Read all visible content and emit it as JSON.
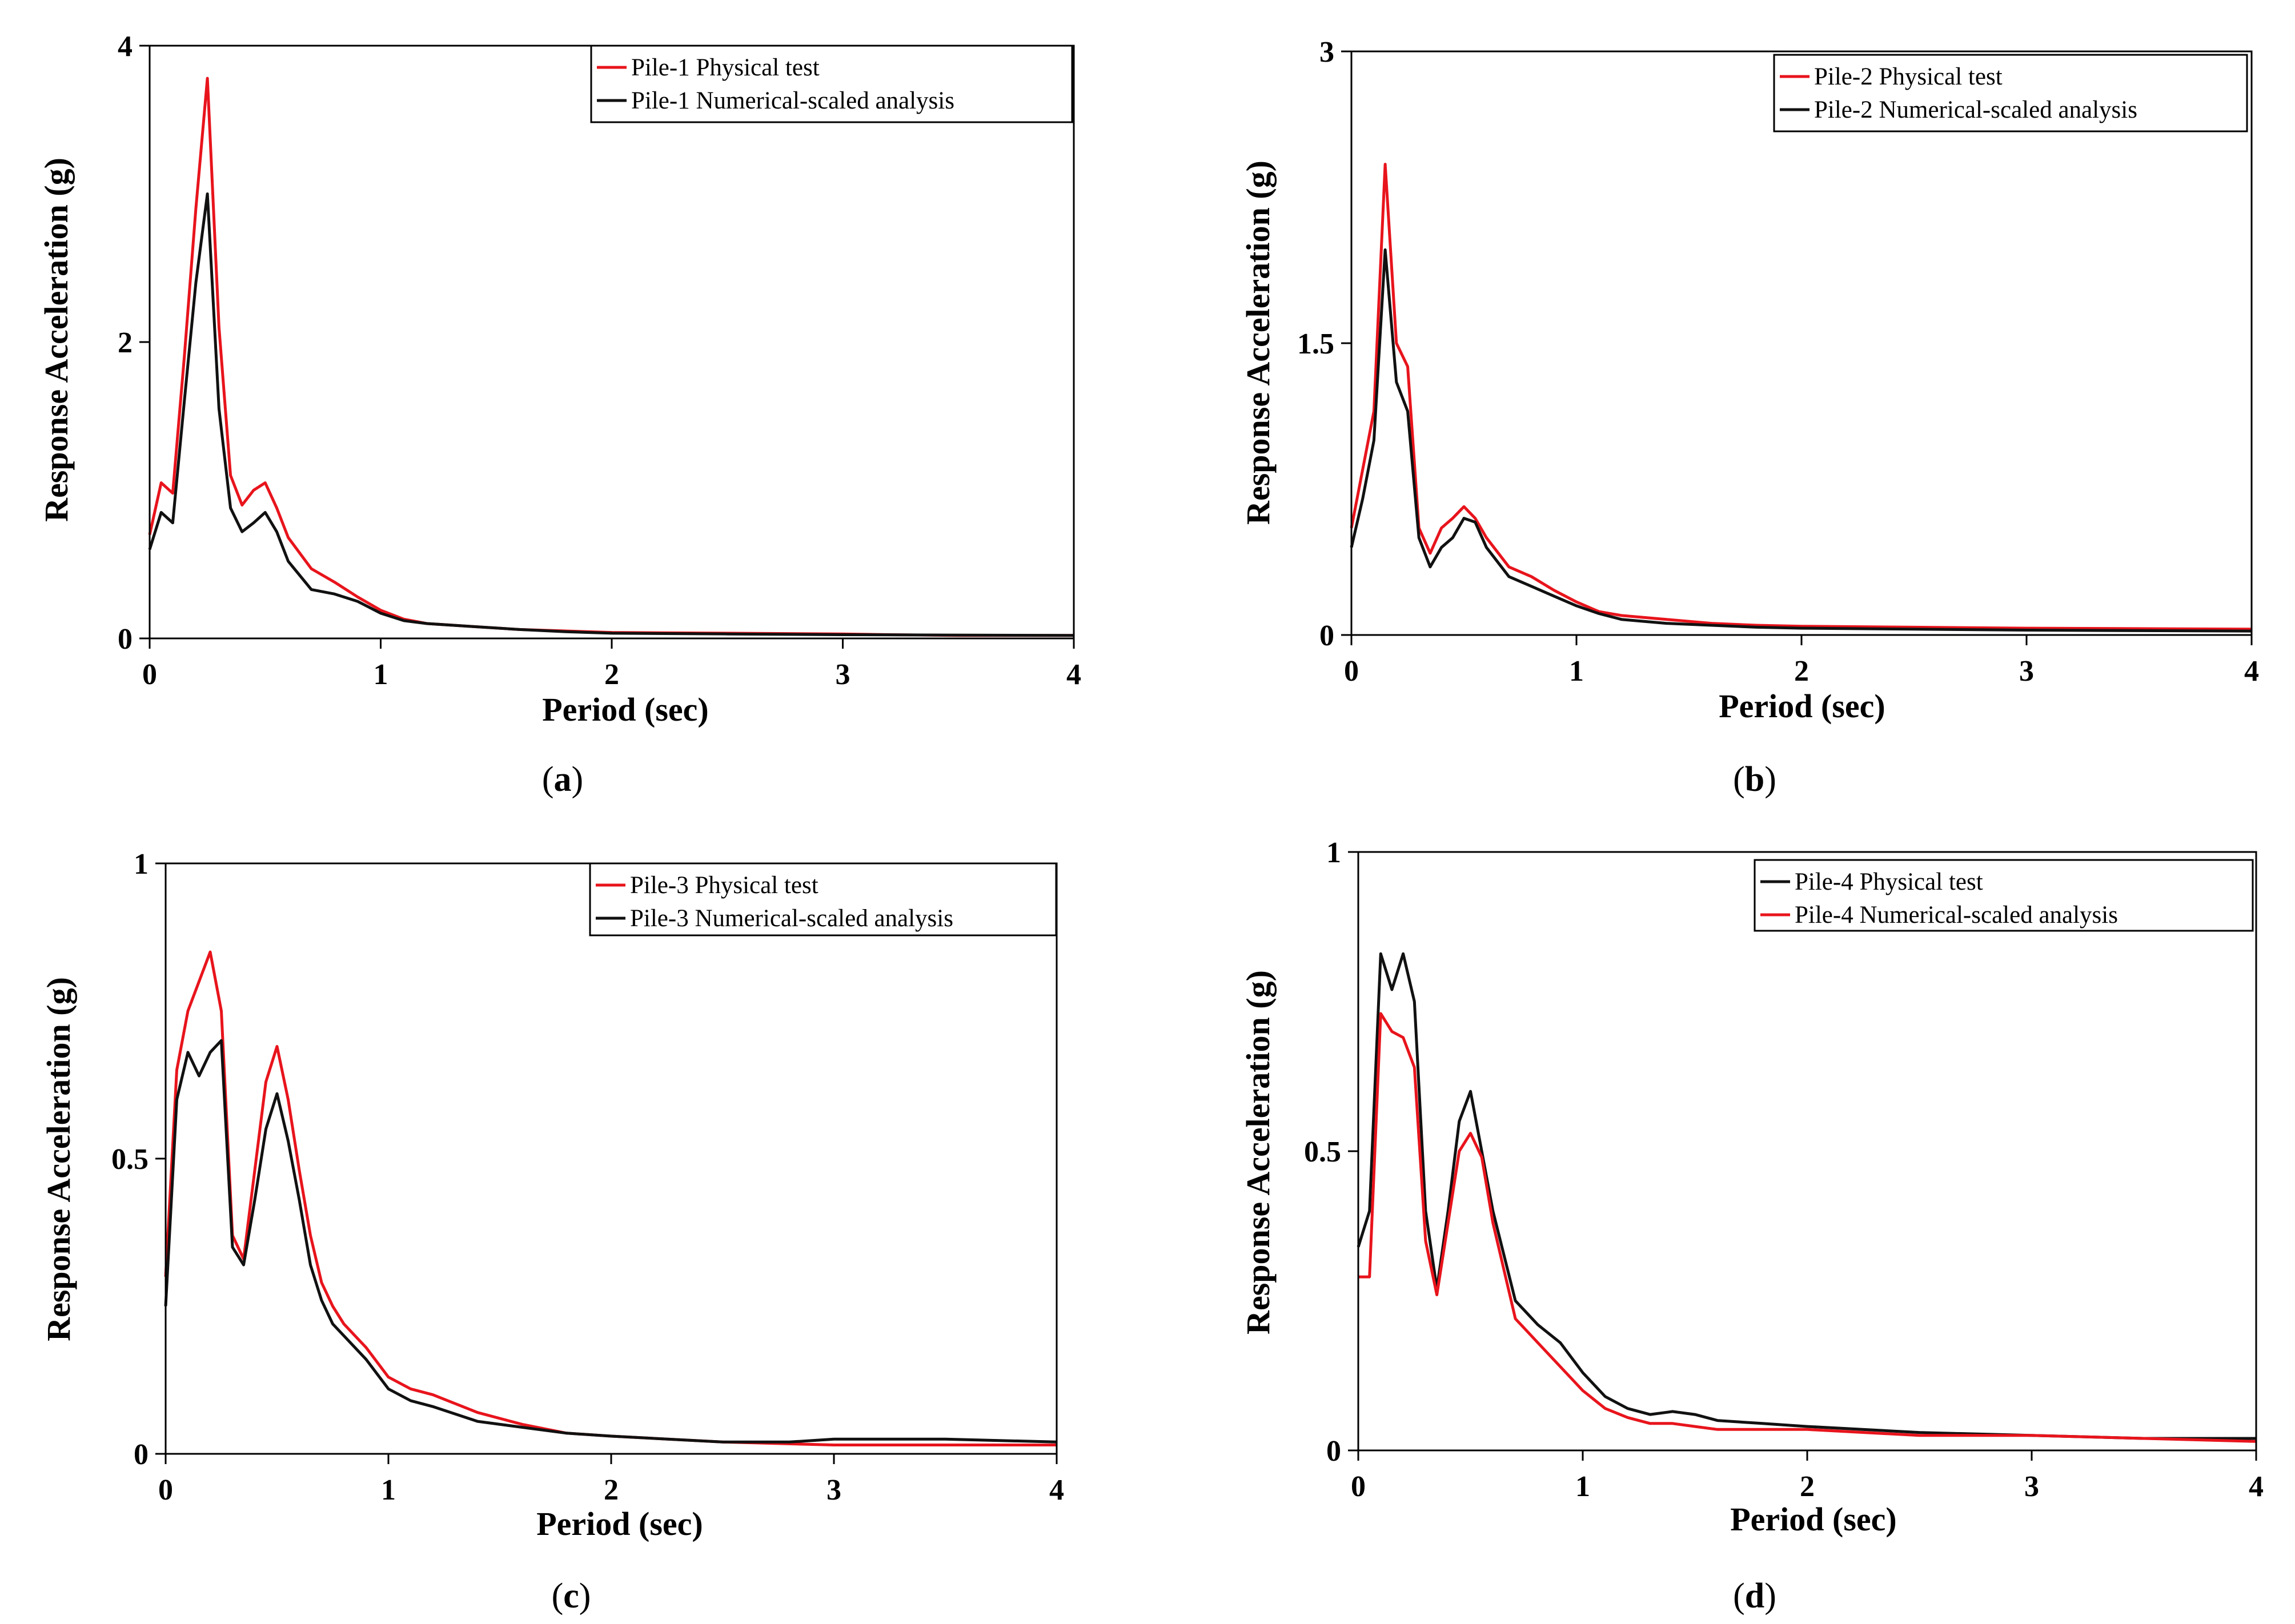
{
  "colors": {
    "red": "#e8141c",
    "black": "#111111"
  },
  "chart_data": [
    {
      "type": "line",
      "caption": "a",
      "xlabel": "Period (sec)",
      "ylabel": "Response Acceleration (g)",
      "xlim": [
        0,
        4
      ],
      "ylim": [
        0,
        4
      ],
      "xticks": [
        0,
        1,
        2,
        3,
        4
      ],
      "yticks": [
        0,
        2,
        4
      ],
      "legend": "top-right",
      "series": [
        {
          "name": "Pile-1 Physical test",
          "color": "#e8141c",
          "x": [
            0,
            0.05,
            0.1,
            0.15,
            0.2,
            0.25,
            0.3,
            0.35,
            0.4,
            0.45,
            0.5,
            0.55,
            0.6,
            0.7,
            0.8,
            0.9,
            1.0,
            1.1,
            1.2,
            1.4,
            1.6,
            1.8,
            2.0,
            2.5,
            3.0,
            3.2,
            3.5,
            4.0
          ],
          "y": [
            0.7,
            1.05,
            0.98,
            1.9,
            2.9,
            3.78,
            2.1,
            1.1,
            0.9,
            1.0,
            1.05,
            0.88,
            0.68,
            0.47,
            0.38,
            0.28,
            0.19,
            0.13,
            0.1,
            0.08,
            0.06,
            0.05,
            0.04,
            0.035,
            0.03,
            0.025,
            0.02,
            0.02
          ]
        },
        {
          "name": "Pile-1 Numerical-scaled analysis",
          "color": "#111111",
          "x": [
            0,
            0.05,
            0.1,
            0.15,
            0.2,
            0.25,
            0.3,
            0.35,
            0.4,
            0.45,
            0.5,
            0.55,
            0.6,
            0.7,
            0.8,
            0.9,
            1.0,
            1.1,
            1.2,
            1.4,
            1.6,
            1.8,
            2.0,
            2.5,
            3.0,
            4.0
          ],
          "y": [
            0.6,
            0.85,
            0.78,
            1.6,
            2.4,
            3.0,
            1.55,
            0.88,
            0.72,
            0.78,
            0.85,
            0.72,
            0.52,
            0.33,
            0.3,
            0.25,
            0.17,
            0.12,
            0.1,
            0.08,
            0.06,
            0.045,
            0.035,
            0.03,
            0.025,
            0.02
          ]
        }
      ]
    },
    {
      "type": "line",
      "caption": "b",
      "xlabel": "Period (sec)",
      "ylabel": "Response Acceleration (g)",
      "xlim": [
        0,
        4
      ],
      "ylim": [
        0,
        3
      ],
      "xticks": [
        0,
        1,
        2,
        3,
        4
      ],
      "yticks": [
        0,
        1.5,
        3
      ],
      "legend": "top-right",
      "series": [
        {
          "name": "Pile-2 Physical test",
          "color": "#e8141c",
          "x": [
            0,
            0.05,
            0.1,
            0.15,
            0.2,
            0.25,
            0.3,
            0.35,
            0.4,
            0.45,
            0.5,
            0.55,
            0.6,
            0.7,
            0.8,
            0.9,
            1.0,
            1.1,
            1.2,
            1.4,
            1.6,
            1.8,
            2.0,
            2.5,
            3.0,
            4.0
          ],
          "y": [
            0.55,
            0.85,
            1.15,
            2.42,
            1.5,
            1.38,
            0.55,
            0.42,
            0.55,
            0.6,
            0.66,
            0.6,
            0.5,
            0.35,
            0.3,
            0.23,
            0.17,
            0.12,
            0.1,
            0.08,
            0.06,
            0.05,
            0.045,
            0.04,
            0.035,
            0.03
          ]
        },
        {
          "name": "Pile-2 Numerical-scaled analysis",
          "color": "#111111",
          "x": [
            0,
            0.05,
            0.1,
            0.15,
            0.2,
            0.25,
            0.3,
            0.35,
            0.4,
            0.45,
            0.5,
            0.55,
            0.6,
            0.7,
            0.8,
            0.9,
            1.0,
            1.1,
            1.2,
            1.4,
            1.6,
            1.8,
            2.0,
            2.5,
            3.0,
            4.0
          ],
          "y": [
            0.45,
            0.7,
            1.0,
            1.98,
            1.3,
            1.15,
            0.5,
            0.35,
            0.45,
            0.5,
            0.6,
            0.58,
            0.45,
            0.3,
            0.25,
            0.2,
            0.15,
            0.11,
            0.08,
            0.06,
            0.05,
            0.04,
            0.035,
            0.03,
            0.025,
            0.02
          ]
        }
      ]
    },
    {
      "type": "line",
      "caption": "c",
      "xlabel": "Period (sec)",
      "ylabel": "Response Acceleration (g)",
      "xlim": [
        0,
        4
      ],
      "ylim": [
        0,
        1
      ],
      "xticks": [
        0,
        1,
        2,
        3,
        4
      ],
      "yticks": [
        0,
        0.5,
        1
      ],
      "legend": "top-right",
      "series": [
        {
          "name": "Pile-3 Physical test",
          "color": "#e8141c",
          "x": [
            0,
            0.05,
            0.1,
            0.15,
            0.2,
            0.25,
            0.3,
            0.35,
            0.4,
            0.45,
            0.5,
            0.55,
            0.6,
            0.65,
            0.7,
            0.75,
            0.8,
            0.9,
            1.0,
            1.1,
            1.2,
            1.4,
            1.6,
            1.8,
            2.0,
            2.5,
            3.0,
            3.5,
            4.0
          ],
          "y": [
            0.3,
            0.65,
            0.75,
            0.8,
            0.85,
            0.75,
            0.37,
            0.33,
            0.48,
            0.63,
            0.69,
            0.6,
            0.48,
            0.37,
            0.29,
            0.25,
            0.22,
            0.18,
            0.13,
            0.11,
            0.1,
            0.07,
            0.05,
            0.035,
            0.03,
            0.02,
            0.015,
            0.015,
            0.015
          ]
        },
        {
          "name": "Pile-3 Numerical-scaled analysis",
          "color": "#111111",
          "x": [
            0,
            0.05,
            0.1,
            0.15,
            0.2,
            0.25,
            0.3,
            0.35,
            0.4,
            0.45,
            0.5,
            0.55,
            0.6,
            0.65,
            0.7,
            0.75,
            0.8,
            0.9,
            1.0,
            1.1,
            1.2,
            1.4,
            1.6,
            1.8,
            2.0,
            2.5,
            2.8,
            3.0,
            3.5,
            4.0
          ],
          "y": [
            0.25,
            0.6,
            0.68,
            0.64,
            0.68,
            0.7,
            0.35,
            0.32,
            0.43,
            0.55,
            0.61,
            0.53,
            0.43,
            0.32,
            0.26,
            0.22,
            0.2,
            0.16,
            0.11,
            0.09,
            0.08,
            0.055,
            0.045,
            0.035,
            0.03,
            0.02,
            0.02,
            0.025,
            0.025,
            0.02
          ]
        }
      ]
    },
    {
      "type": "line",
      "caption": "d",
      "xlabel": "Period (sec)",
      "ylabel": "Response Acceleration (g)",
      "xlim": [
        0,
        4
      ],
      "ylim": [
        0,
        1
      ],
      "xticks": [
        0,
        1,
        2,
        3,
        4
      ],
      "yticks": [
        0,
        0.5,
        1
      ],
      "legend": "top-right",
      "series": [
        {
          "name": "Pile-4 Physical test",
          "color": "#111111",
          "x": [
            0,
            0.05,
            0.1,
            0.15,
            0.2,
            0.25,
            0.3,
            0.35,
            0.4,
            0.45,
            0.5,
            0.55,
            0.6,
            0.7,
            0.8,
            0.9,
            1.0,
            1.1,
            1.2,
            1.3,
            1.4,
            1.5,
            1.6,
            1.8,
            2.0,
            2.5,
            3.0,
            3.5,
            4.0
          ],
          "y": [
            0.34,
            0.4,
            0.83,
            0.77,
            0.83,
            0.75,
            0.4,
            0.27,
            0.4,
            0.55,
            0.6,
            0.5,
            0.4,
            0.25,
            0.21,
            0.18,
            0.13,
            0.09,
            0.07,
            0.06,
            0.065,
            0.06,
            0.05,
            0.045,
            0.04,
            0.03,
            0.025,
            0.02,
            0.02
          ]
        },
        {
          "name": "Pile-4 Numerical-scaled analysis",
          "color": "#e8141c",
          "x": [
            0,
            0.05,
            0.1,
            0.15,
            0.2,
            0.25,
            0.3,
            0.35,
            0.4,
            0.45,
            0.5,
            0.55,
            0.6,
            0.7,
            0.8,
            0.9,
            1.0,
            1.1,
            1.2,
            1.3,
            1.4,
            1.5,
            1.6,
            1.8,
            2.0,
            2.5,
            3.0,
            3.5,
            4.0
          ],
          "y": [
            0.29,
            0.29,
            0.73,
            0.7,
            0.69,
            0.64,
            0.35,
            0.26,
            0.38,
            0.5,
            0.53,
            0.49,
            0.38,
            0.22,
            0.18,
            0.14,
            0.1,
            0.07,
            0.055,
            0.045,
            0.045,
            0.04,
            0.035,
            0.035,
            0.035,
            0.025,
            0.025,
            0.02,
            0.015
          ]
        }
      ]
    }
  ]
}
